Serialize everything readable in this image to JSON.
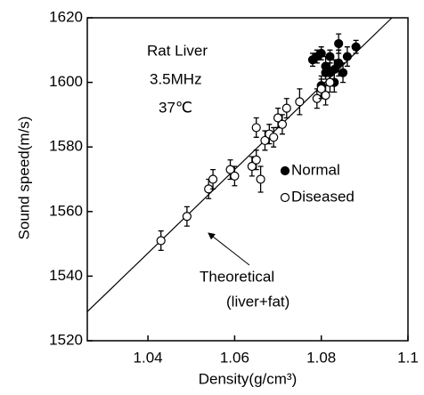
{
  "chart_data": {
    "type": "scatter",
    "xlabel": "Density(g/cm³)",
    "ylabel": "Sound speed(m/s)",
    "annotations": [
      "Rat Liver",
      "3.5MHz",
      "37℃",
      "Theoretical",
      "(liver+fat)"
    ],
    "xlim": [
      1.026,
      1.1
    ],
    "ylim": [
      1520,
      1620
    ],
    "xticks": [
      1.04,
      1.06,
      1.08,
      1.1
    ],
    "yticks": [
      1520,
      1540,
      1560,
      1580,
      1600,
      1620
    ],
    "legend": "right",
    "theoretical_line": {
      "x": [
        1.026,
        1.0963
      ],
      "values": [
        1529,
        1620
      ],
      "color": "#000000"
    },
    "series": [
      {
        "name": "Normal",
        "color": "#000000",
        "marker": "filled",
        "x": [
          1.078,
          1.079,
          1.08,
          1.081,
          1.082,
          1.082,
          1.083,
          1.083,
          1.084,
          1.084,
          1.085,
          1.086,
          1.088,
          1.08,
          1.081
        ],
        "values": [
          1607,
          1608,
          1609,
          1605,
          1603,
          1608,
          1604,
          1600,
          1612,
          1606,
          1603,
          1608,
          1611,
          1599,
          1603
        ],
        "errors": [
          2,
          2,
          2,
          3,
          3,
          2,
          3,
          3,
          3,
          4,
          3,
          3,
          2,
          3,
          2
        ]
      },
      {
        "name": "Diseased",
        "color": "#000000",
        "marker": "open",
        "x": [
          1.043,
          1.049,
          1.054,
          1.055,
          1.059,
          1.06,
          1.064,
          1.065,
          1.065,
          1.066,
          1.067,
          1.068,
          1.069,
          1.07,
          1.071,
          1.072,
          1.075,
          1.079,
          1.08,
          1.081,
          1.082
        ],
        "values": [
          1551,
          1558.5,
          1567,
          1570,
          1573,
          1571,
          1574,
          1576,
          1586,
          1570,
          1582,
          1584,
          1583,
          1589,
          1587,
          1592,
          1594,
          1595,
          1598,
          1596,
          1600
        ],
        "errors": [
          3,
          3,
          3,
          3,
          3,
          3,
          3,
          3,
          3,
          4,
          3,
          3,
          3,
          3,
          3,
          3,
          4,
          3,
          3,
          3,
          3
        ]
      }
    ]
  }
}
